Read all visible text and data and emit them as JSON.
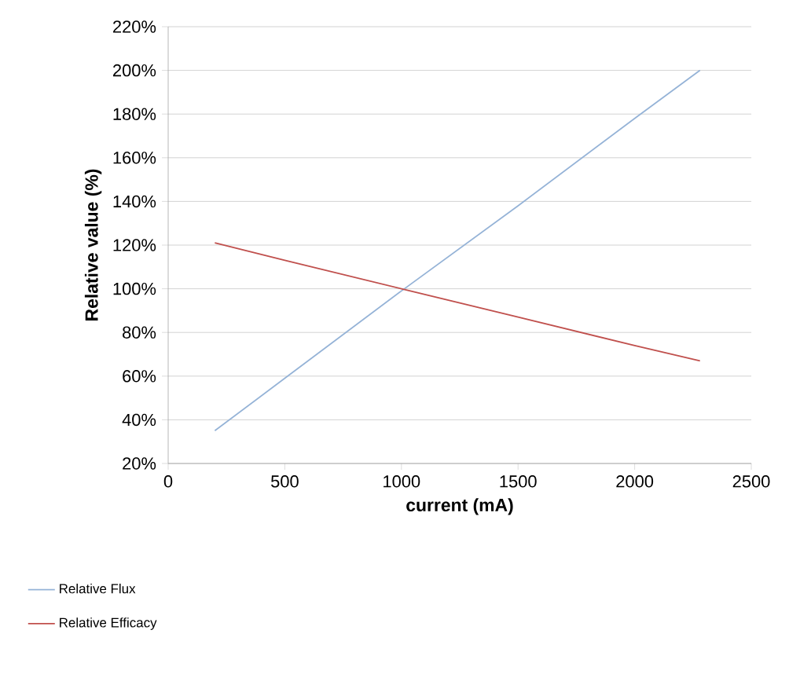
{
  "chart_data": {
    "type": "line",
    "xlabel": "current (mA)",
    "ylabel": "Relative value (%)",
    "series": [
      {
        "name": "Relative Flux",
        "color": "#95b3d7",
        "x": [
          200,
          500,
          1000,
          1500,
          2000,
          2280
        ],
        "values": [
          35,
          59,
          99,
          138,
          178,
          200
        ]
      },
      {
        "name": "Relative Efficacy",
        "color": "#c0504d",
        "x": [
          200,
          500,
          1000,
          1500,
          2000,
          2280
        ],
        "values": [
          121,
          113,
          100,
          87,
          74,
          67
        ]
      }
    ],
    "xlim": [
      0,
      2500
    ],
    "xticks": [
      0,
      500,
      1000,
      1500,
      2000,
      2500
    ],
    "ylim": [
      20,
      220
    ],
    "yticks": [
      {
        "value": 20,
        "label": "20%"
      },
      {
        "value": 40,
        "label": "40%"
      },
      {
        "value": 60,
        "label": "60%"
      },
      {
        "value": 80,
        "label": "80%"
      },
      {
        "value": 100,
        "label": "100%"
      },
      {
        "value": 120,
        "label": "120%"
      },
      {
        "value": 140,
        "label": "140%"
      },
      {
        "value": 160,
        "label": "160%"
      },
      {
        "value": 180,
        "label": "180%"
      },
      {
        "value": 200,
        "label": "200%"
      },
      {
        "value": 220,
        "label": "220%"
      }
    ],
    "grid": "y",
    "legend": "bottom left",
    "marker": "none",
    "line_style": "solid"
  }
}
